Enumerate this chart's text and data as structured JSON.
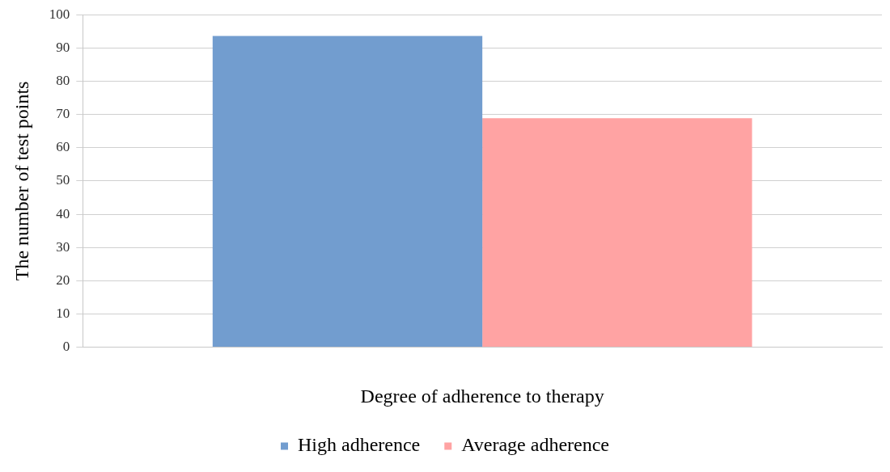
{
  "chart_data": {
    "type": "bar",
    "xlabel": "Degree of adherence to therapy",
    "ylabel": "The number of test points",
    "categories": [
      null
    ],
    "series": [
      {
        "name": "High adherence",
        "color": "#729dcf",
        "values": [
          93.6
        ]
      },
      {
        "name": "Average adherence",
        "color": "#ffa3a3",
        "values": [
          68.9
        ]
      }
    ],
    "ylim": [
      0,
      100
    ],
    "yticks": [
      0,
      10,
      20,
      30,
      40,
      50,
      60,
      70,
      80,
      90,
      100
    ],
    "grid": "y",
    "legend": "bottom"
  }
}
